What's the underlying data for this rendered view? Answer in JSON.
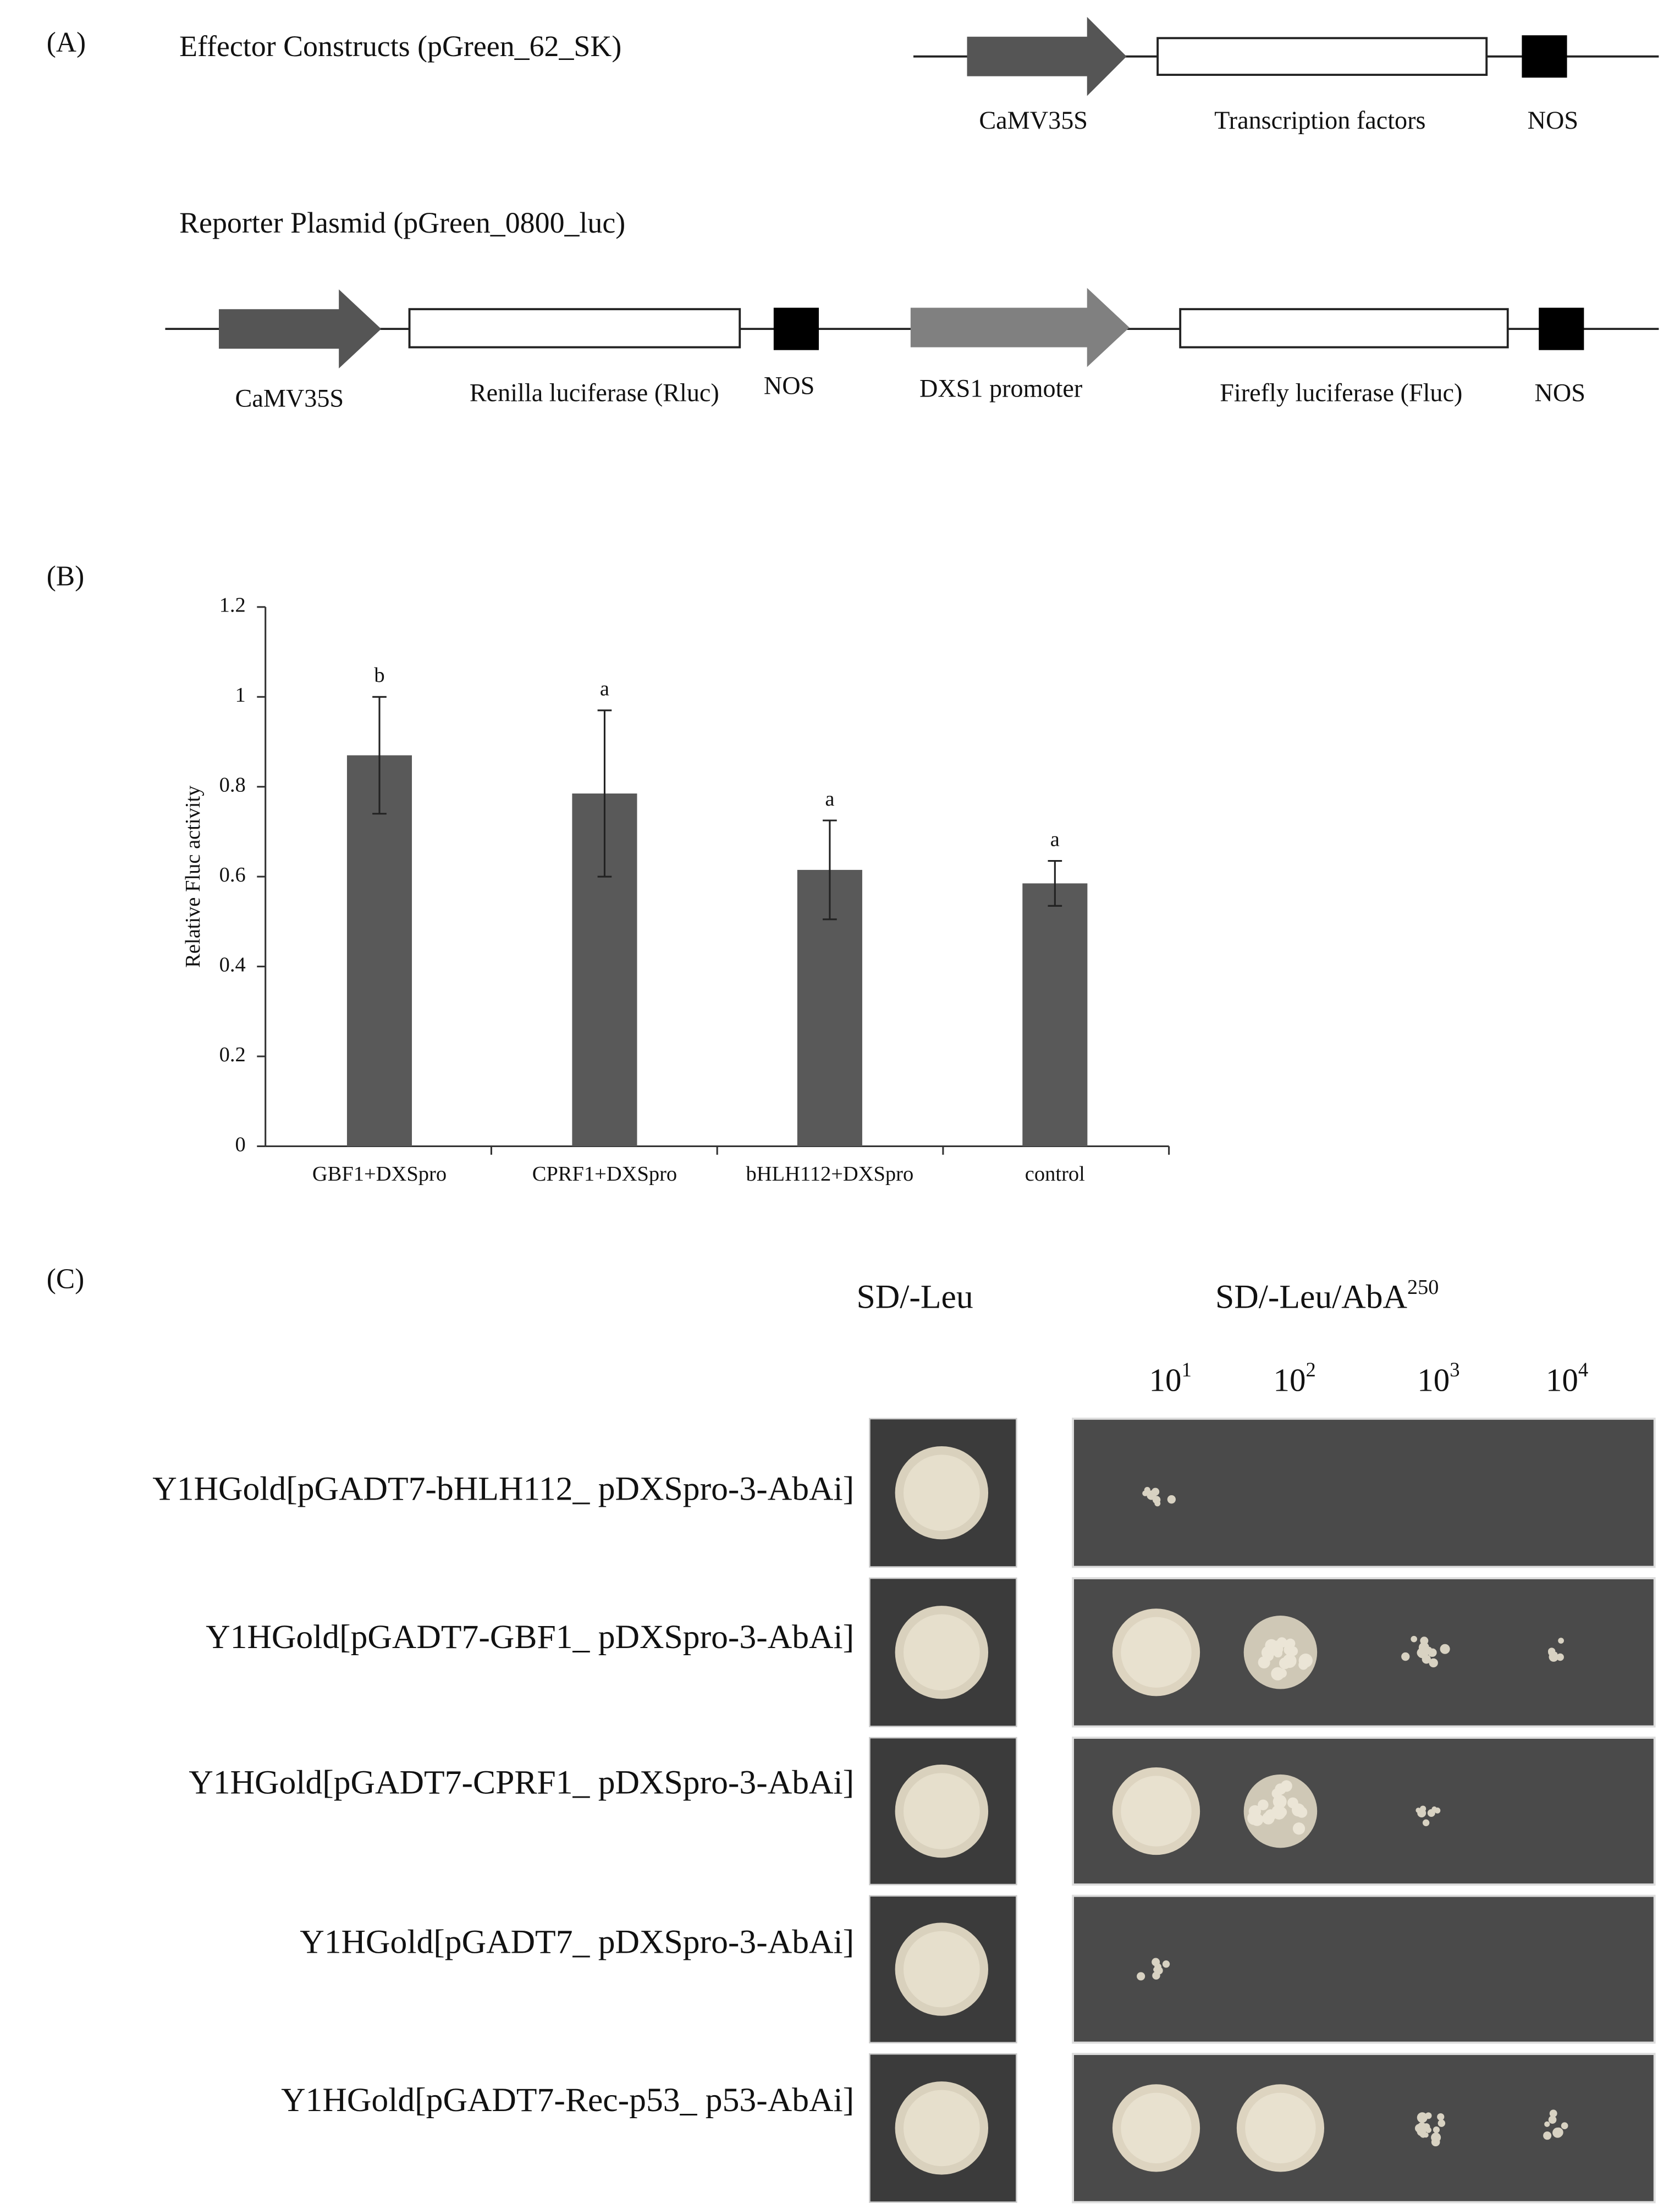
{
  "panel_labels": [
    "(A)",
    "(B)",
    "(C)"
  ],
  "effector": {
    "title": "Effector Constructs (pGreen_62_SK)",
    "elements": [
      "CaMV35S",
      "Transcription factors",
      "NOS"
    ]
  },
  "reporter": {
    "title": "Reporter Plasmid (pGreen_0800_luc)",
    "elements": [
      "CaMV35S",
      "Renilla luciferase (Rluc)",
      "NOS",
      "DXS1 promoter",
      "Firefly luciferase (Fluc)",
      "NOS"
    ]
  },
  "chart_data": {
    "type": "bar",
    "ylabel": "Relative Fluc activity",
    "categories": [
      "GBF1+DXSpro",
      "CPRF1+DXSpro",
      "bHLH112+DXSpro",
      "control"
    ],
    "values": [
      0.87,
      0.785,
      0.615,
      0.585
    ],
    "errors": [
      0.13,
      0.185,
      0.11,
      0.05
    ],
    "annotations": [
      "b",
      "a",
      "a",
      "a"
    ],
    "color": "#595959",
    "ylim": [
      0,
      1.2
    ],
    "yticks": [
      0,
      0.2,
      0.4,
      0.6,
      0.8,
      1,
      1.2
    ]
  },
  "assay": {
    "media": [
      {
        "text": "SD/-Leu"
      },
      {
        "text": "SD/-Leu/AbA",
        "sup": "250"
      }
    ],
    "dilutions": [
      {
        "base": "10",
        "sup": "1"
      },
      {
        "base": "10",
        "sup": "2"
      },
      {
        "base": "10",
        "sup": "3"
      },
      {
        "base": "10",
        "sup": "4"
      }
    ],
    "strains": [
      "Y1HGold[pGADT7-bHLH112_ pDXSpro-3-AbAi]",
      "Y1HGold[pGADT7-GBF1_ pDXSpro-3-AbAi]",
      "Y1HGold[pGADT7-CPRF1_ pDXSpro-3-AbAi]",
      "Y1HGold[pGADT7_ pDXSpro-3-AbAi]",
      "Y1HGold[pGADT7-Rec-p53_ p53-AbAi]"
    ]
  }
}
